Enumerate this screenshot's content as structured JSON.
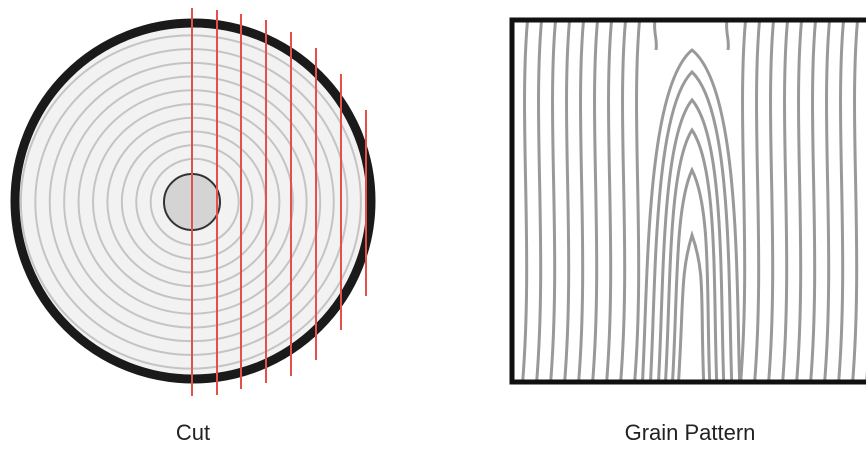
{
  "cut_label": "Cut",
  "grain_label": "Grain Pattern"
}
